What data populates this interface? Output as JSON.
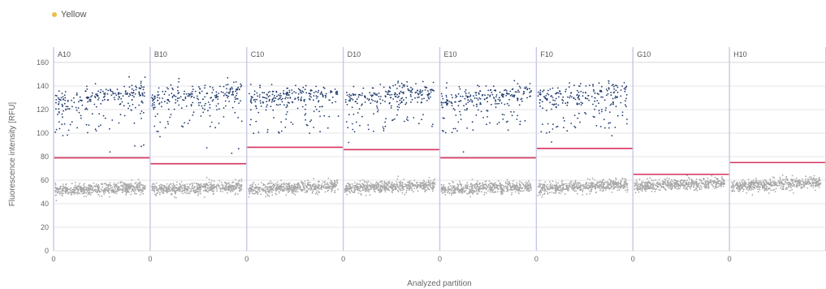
{
  "legend": {
    "entries": [
      {
        "label": "Yellow",
        "color": "#e9bf4a"
      }
    ]
  },
  "chart_data": {
    "type": "scatter",
    "title": "",
    "xlabel": "Analyzed partition",
    "ylabel": "Fluorescence intensity [RFU]",
    "ylim": [
      0,
      160
    ],
    "yticks": [
      0,
      20,
      40,
      60,
      80,
      100,
      120,
      140,
      160
    ],
    "grid": true,
    "legend_position": "top-left",
    "colors": {
      "positive": "#1f3a6d",
      "negative": "#a8a8a8",
      "threshold": "#d6335c",
      "divider": "#c5c8e6",
      "grid": "#e4e4e4"
    },
    "wells": [
      {
        "name": "A10",
        "x_tick": "0",
        "threshold": 79,
        "positive": {
          "min": 122,
          "max": 140,
          "trend": 8
        },
        "negative_center": 51,
        "has_positives": true
      },
      {
        "name": "B10",
        "x_tick": "0",
        "threshold": 74,
        "positive": {
          "min": 125,
          "max": 140,
          "trend": 6
        },
        "negative_center": 52,
        "has_positives": true
      },
      {
        "name": "C10",
        "x_tick": "0",
        "threshold": 88,
        "positive": {
          "min": 125,
          "max": 138,
          "trend": 6
        },
        "negative_center": 52,
        "has_positives": true
      },
      {
        "name": "D10",
        "x_tick": "0",
        "threshold": 86,
        "positive": {
          "min": 127,
          "max": 138,
          "trend": 4
        },
        "negative_center": 53,
        "has_positives": true
      },
      {
        "name": "E10",
        "x_tick": "0",
        "threshold": 79,
        "positive": {
          "min": 124,
          "max": 138,
          "trend": 6
        },
        "negative_center": 52,
        "has_positives": true
      },
      {
        "name": "F10",
        "x_tick": "0",
        "threshold": 87,
        "positive": {
          "min": 125,
          "max": 140,
          "trend": 6
        },
        "negative_center": 53,
        "has_positives": true
      },
      {
        "name": "G10",
        "x_tick": "0",
        "threshold": 65,
        "positive": null,
        "negative_center": 55,
        "has_positives": false
      },
      {
        "name": "H10",
        "x_tick": "0",
        "threshold": 75,
        "positive": null,
        "negative_center": 55,
        "has_positives": false
      }
    ]
  }
}
